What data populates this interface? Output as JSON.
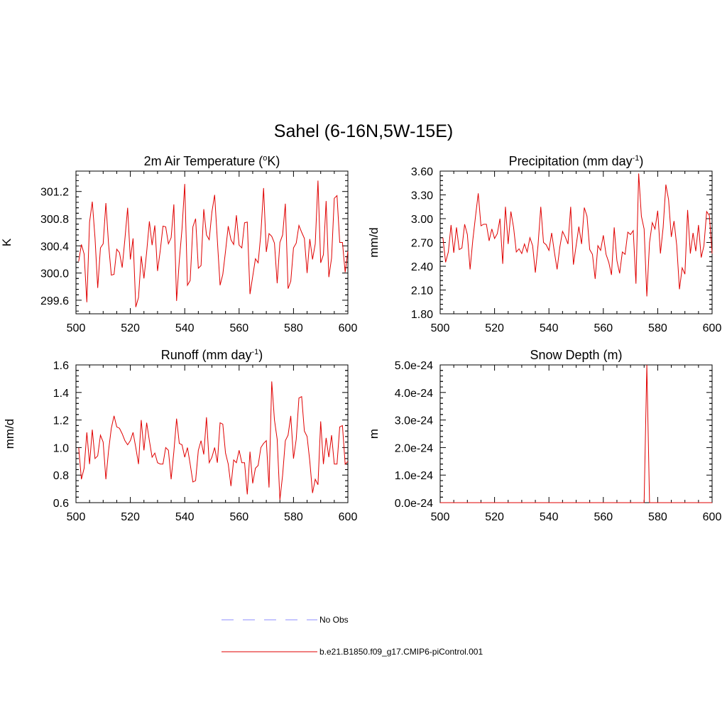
{
  "title": "Sahel (6-16N,5W-15E)",
  "colors": {
    "model": "#e00000",
    "obs": "#8c8cff"
  },
  "legend": {
    "items": [
      {
        "label": "No Obs",
        "style": "dashed",
        "color": "#8c8cff"
      },
      {
        "label": "b.e21.B1850.f09_g17.CMIP6-piControl.001",
        "style": "solid",
        "color": "#e00000"
      }
    ]
  },
  "chart_data": [
    {
      "type": "line",
      "title": "2m Air Temperature (",
      "title_sup": "o",
      "title_after": "K)",
      "ylabel": "K",
      "xlim": [
        500,
        600
      ],
      "ylim": [
        299.4,
        301.5
      ],
      "xticks": [
        500,
        520,
        540,
        560,
        580,
        600
      ],
      "yticks": [
        299.6,
        300.0,
        300.4,
        300.8,
        301.2
      ],
      "ytick_labels": [
        "299.6",
        "300.0",
        "300.4",
        "300.8",
        "301.2"
      ],
      "x_start": 501,
      "series": [
        {
          "values": [
            300.17,
            300.42,
            300.28,
            299.57,
            300.75,
            301.05,
            300.52,
            299.78,
            300.37,
            300.43,
            301.03,
            300.42,
            299.97,
            299.98,
            300.35,
            300.3,
            300.08,
            300.5,
            300.96,
            300.2,
            300.51,
            299.5,
            299.64,
            300.25,
            299.92,
            300.31,
            300.76,
            300.41,
            300.7,
            300.03,
            300.33,
            300.69,
            300.68,
            300.43,
            300.52,
            301.01,
            299.59,
            300.18,
            300.65,
            301.31,
            299.82,
            299.89,
            300.68,
            300.8,
            300.07,
            300.11,
            300.94,
            300.56,
            300.49,
            300.9,
            301.15,
            300.48,
            299.82,
            299.98,
            300.32,
            300.69,
            300.49,
            300.42,
            300.85,
            300.41,
            300.37,
            300.74,
            300.75,
            299.69,
            299.95,
            300.21,
            300.15,
            300.58,
            301.25,
            300.31,
            300.58,
            300.54,
            300.44,
            299.85,
            300.45,
            300.56,
            301.02,
            299.77,
            299.88,
            300.37,
            300.44,
            300.7,
            300.6,
            300.51,
            300.0,
            300.5,
            300.2,
            300.43,
            301.36,
            300.15,
            300.27,
            301.06,
            299.94,
            300.22,
            301.1,
            301.14,
            300.45,
            300.45,
            300.01,
            300.32
          ]
        }
      ]
    },
    {
      "type": "line",
      "title": "Precipitation (mm day",
      "title_sup": "-1",
      "title_after": ")",
      "ylabel": "mm/d",
      "xlim": [
        500,
        600
      ],
      "ylim": [
        1.8,
        3.6
      ],
      "xticks": [
        500,
        520,
        540,
        560,
        580,
        600
      ],
      "yticks": [
        1.8,
        2.1,
        2.4,
        2.7,
        3.0,
        3.3,
        3.6
      ],
      "ytick_labels": [
        "1.80",
        "2.10",
        "2.40",
        "2.70",
        "3.00",
        "3.30",
        "3.60"
      ],
      "x_start": 501,
      "series": [
        {
          "values": [
            2.76,
            2.45,
            2.58,
            2.92,
            2.57,
            2.89,
            2.61,
            2.63,
            2.93,
            2.8,
            2.36,
            2.73,
            3.03,
            3.32,
            2.91,
            2.93,
            2.93,
            2.72,
            2.87,
            2.75,
            2.81,
            3.0,
            2.43,
            3.15,
            2.68,
            3.09,
            2.89,
            2.58,
            2.62,
            2.56,
            2.68,
            2.58,
            2.76,
            2.66,
            2.32,
            2.67,
            3.15,
            2.7,
            2.67,
            2.6,
            2.82,
            2.58,
            2.36,
            2.64,
            2.84,
            2.77,
            2.68,
            3.15,
            2.42,
            2.66,
            2.9,
            2.68,
            3.14,
            3.03,
            2.61,
            2.55,
            2.24,
            2.66,
            2.6,
            2.79,
            2.55,
            2.45,
            2.29,
            2.89,
            2.47,
            2.31,
            2.58,
            2.55,
            2.83,
            2.8,
            2.85,
            2.18,
            3.57,
            3.03,
            2.87,
            2.02,
            2.7,
            2.95,
            2.87,
            3.1,
            2.56,
            2.89,
            3.43,
            3.24,
            2.77,
            2.97,
            2.66,
            2.11,
            2.38,
            2.3,
            3.11,
            2.56,
            2.82,
            2.59,
            2.92,
            2.51,
            2.66,
            3.09,
            3.04,
            2.56
          ]
        }
      ]
    },
    {
      "type": "line",
      "title": "Runoff (mm day",
      "title_sup": "-1",
      "title_after": ")",
      "ylabel": "mm/d",
      "xlim": [
        500,
        600
      ],
      "ylim": [
        0.6,
        1.6
      ],
      "xticks": [
        500,
        520,
        540,
        560,
        580,
        600
      ],
      "yticks": [
        0.6,
        0.8,
        1.0,
        1.2,
        1.4,
        1.6
      ],
      "ytick_labels": [
        "0.6",
        "0.8",
        "1.0",
        "1.2",
        "1.4",
        "1.6"
      ],
      "x_start": 501,
      "series": [
        {
          "values": [
            1.0,
            0.77,
            0.85,
            1.11,
            0.88,
            1.13,
            0.92,
            0.94,
            1.09,
            1.04,
            0.77,
            0.98,
            1.14,
            1.23,
            1.15,
            1.14,
            1.1,
            1.05,
            1.02,
            1.05,
            1.11,
            1.0,
            0.88,
            1.2,
            0.98,
            1.18,
            1.05,
            0.93,
            0.96,
            0.89,
            0.88,
            0.88,
            1.0,
            0.98,
            0.77,
            0.97,
            1.21,
            1.03,
            1.02,
            0.93,
            1.0,
            0.88,
            0.75,
            0.76,
            0.98,
            1.05,
            0.95,
            1.22,
            0.89,
            0.93,
            1.0,
            0.89,
            1.18,
            1.17,
            0.96,
            0.88,
            0.72,
            0.91,
            0.89,
            0.98,
            0.89,
            0.89,
            0.66,
            0.97,
            0.74,
            0.85,
            0.87,
            1.0,
            1.03,
            1.05,
            0.71,
            1.48,
            1.2,
            1.06,
            0.62,
            0.8,
            1.05,
            1.09,
            1.23,
            0.92,
            1.06,
            1.36,
            1.37,
            1.12,
            1.08,
            0.9,
            0.67,
            0.77,
            0.73,
            1.19,
            0.88,
            1.07,
            0.93,
            1.09,
            0.88,
            0.88,
            1.15,
            1.16,
            0.88,
            0.9
          ]
        }
      ]
    },
    {
      "type": "line",
      "title": "Snow Depth (m)",
      "title_sup": "",
      "title_after": "",
      "ylabel": "m",
      "xlim": [
        500,
        600
      ],
      "ylim": [
        0,
        5e-24
      ],
      "xticks": [
        500,
        520,
        540,
        560,
        580,
        600
      ],
      "yticks": [
        0,
        1e-24,
        2e-24,
        3e-24,
        4e-24,
        5e-24
      ],
      "ytick_labels": [
        "0.0e-24",
        "1.0e-24",
        "2.0e-24",
        "3.0e-24",
        "4.0e-24",
        "5.0e-24"
      ],
      "x": [
        500,
        575,
        576,
        577,
        600
      ],
      "series": [
        {
          "values": [
            0,
            0,
            5e-24,
            0,
            0
          ]
        }
      ]
    }
  ]
}
